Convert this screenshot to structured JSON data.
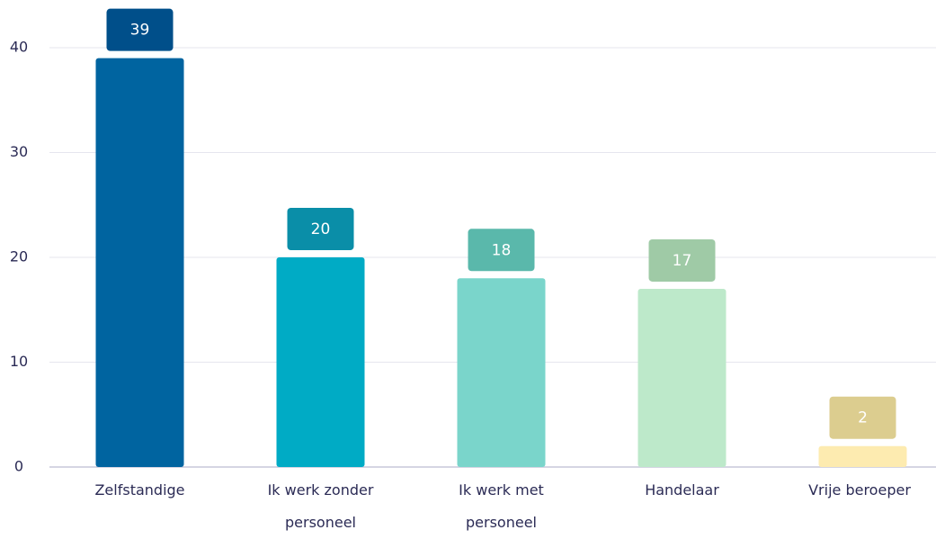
{
  "chart_data": {
    "type": "bar",
    "categories": [
      "Zelfstandige",
      "Ik werk zonder personeel",
      "Ik werk met personeel",
      "Handelaar",
      "Vrije beroeper"
    ],
    "values": [
      39,
      20,
      18,
      17,
      2
    ],
    "colors": [
      "#0064a0",
      "#00abc5",
      "#7ad5cb",
      "#bde9ca",
      "#fdebb0"
    ],
    "label_colors": [
      "#004f8a",
      "#0a8ea8",
      "#5ab8ab",
      "#9fcaa6",
      "#dccd8f"
    ],
    "ylim": [
      0,
      40
    ],
    "yticks": [
      0,
      10,
      20,
      30,
      40
    ],
    "grid": true
  }
}
